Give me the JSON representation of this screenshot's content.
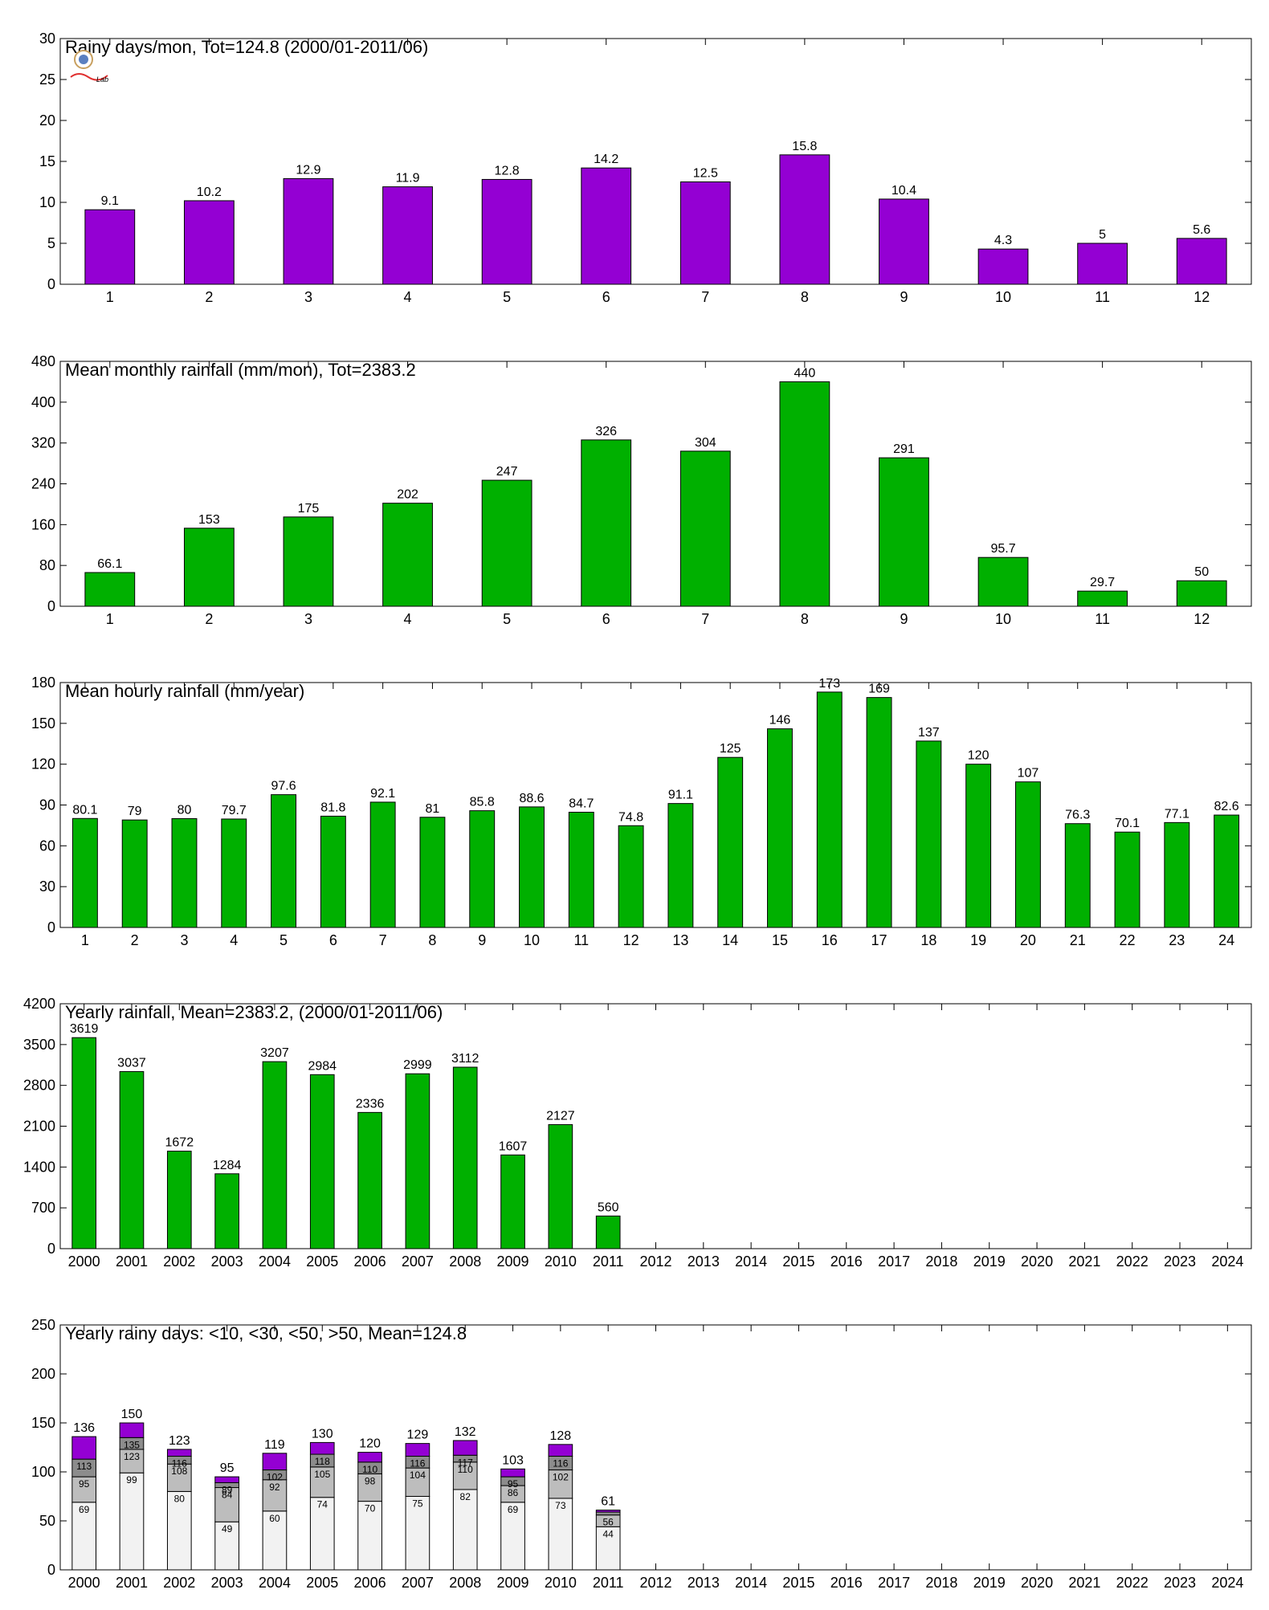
{
  "colors": {
    "purple": "#9400d3",
    "green": "#00b000",
    "white_bin": "#f2f2f2",
    "light_gray_bin": "#bdbdbd",
    "dark_gray_bin": "#8c8c8c",
    "outline": "#000000"
  },
  "logo": {
    "label": "logo",
    "text": "Lab"
  },
  "chart_data": [
    {
      "type": "bar",
      "title": "Rainy days/mon, Tot=124.8 (2000/01-2011/06)",
      "xlabel": "",
      "ylabel": "",
      "categories": [
        "1",
        "2",
        "3",
        "4",
        "5",
        "6",
        "7",
        "8",
        "9",
        "10",
        "11",
        "12"
      ],
      "values": [
        9.1,
        10.2,
        12.9,
        11.9,
        12.8,
        14.2,
        12.5,
        15.8,
        10.4,
        4.3,
        5,
        5.6
      ],
      "labels": [
        "9.1",
        "10.2",
        "12.9",
        "11.9",
        "12.8",
        "14.2",
        "12.5",
        "15.8",
        "10.4",
        "4.3",
        "5",
        "5.6"
      ],
      "ylim": [
        0,
        30
      ],
      "yticks": [
        "0",
        "5",
        "10",
        "15",
        "20",
        "25",
        "30"
      ],
      "color": "#9400d3",
      "grid": false
    },
    {
      "type": "bar",
      "title": "Mean monthly rainfall (mm/mon), Tot=2383.2",
      "xlabel": "",
      "ylabel": "",
      "categories": [
        "1",
        "2",
        "3",
        "4",
        "5",
        "6",
        "7",
        "8",
        "9",
        "10",
        "11",
        "12"
      ],
      "values": [
        66.1,
        153,
        175,
        202,
        247,
        326,
        304,
        440,
        291,
        95.7,
        29.7,
        50
      ],
      "labels": [
        "66.1",
        "153",
        "175",
        "202",
        "247",
        "326",
        "304",
        "440",
        "291",
        "95.7",
        "29.7",
        "50"
      ],
      "ylim": [
        0,
        480
      ],
      "yticks": [
        "0",
        "80",
        "160",
        "240",
        "320",
        "400",
        "480"
      ],
      "color": "#00b000",
      "grid": false
    },
    {
      "type": "bar",
      "title": "Mean hourly rainfall (mm/year)",
      "xlabel": "",
      "ylabel": "",
      "categories": [
        "1",
        "2",
        "3",
        "4",
        "5",
        "6",
        "7",
        "8",
        "9",
        "10",
        "11",
        "12",
        "13",
        "14",
        "15",
        "16",
        "17",
        "18",
        "19",
        "20",
        "21",
        "22",
        "23",
        "24"
      ],
      "values": [
        80.1,
        79,
        80,
        79.7,
        97.6,
        81.8,
        92.1,
        81,
        85.8,
        88.6,
        84.7,
        74.8,
        91.1,
        125,
        146,
        173,
        169,
        137,
        120,
        107,
        76.3,
        70.1,
        77.1,
        82.6
      ],
      "labels": [
        "80.1",
        "79",
        "80",
        "79.7",
        "97.6",
        "81.8",
        "92.1",
        "81",
        "85.8",
        "88.6",
        "84.7",
        "74.8",
        "91.1",
        "125",
        "146",
        "173",
        "169",
        "137",
        "120",
        "107",
        "76.3",
        "70.1",
        "77.1",
        "82.6"
      ],
      "ylim": [
        0,
        180
      ],
      "yticks": [
        "0",
        "30",
        "60",
        "90",
        "120",
        "150",
        "180"
      ],
      "color": "#00b000",
      "grid": false
    },
    {
      "type": "bar",
      "title": "Yearly rainfall, Mean=2383.2, (2000/01-2011/06)",
      "xlabel": "",
      "ylabel": "",
      "categories": [
        "2000",
        "2001",
        "2002",
        "2003",
        "2004",
        "2005",
        "2006",
        "2007",
        "2008",
        "2009",
        "2010",
        "2011",
        "2012",
        "2013",
        "2014",
        "2015",
        "2016",
        "2017",
        "2018",
        "2019",
        "2020",
        "2021",
        "2022",
        "2023",
        "2024"
      ],
      "values": [
        3619,
        3037,
        1672,
        1284,
        3207,
        2984,
        2336,
        2999,
        3112,
        1607,
        2127,
        560,
        null,
        null,
        null,
        null,
        null,
        null,
        null,
        null,
        null,
        null,
        null,
        null,
        null
      ],
      "labels": [
        "3619",
        "3037",
        "1672",
        "1284",
        "3207",
        "2984",
        "2336",
        "2999",
        "3112",
        "1607",
        "2127",
        "560",
        "",
        "",
        "",
        "",
        "",
        "",
        "",
        "",
        "",
        "",
        "",
        "",
        ""
      ],
      "ylim": [
        0,
        4200
      ],
      "yticks": [
        "0",
        "700",
        "1400",
        "2100",
        "2800",
        "3500",
        "4200"
      ],
      "color": "#00b000",
      "grid": false
    },
    {
      "type": "bar",
      "stacked": true,
      "title": "Yearly rainy days: <10, <30, <50, >50, Mean=124.8",
      "xlabel": "",
      "ylabel": "",
      "categories": [
        "2000",
        "2001",
        "2002",
        "2003",
        "2004",
        "2005",
        "2006",
        "2007",
        "2008",
        "2009",
        "2010",
        "2011",
        "2012",
        "2013",
        "2014",
        "2015",
        "2016",
        "2017",
        "2018",
        "2019",
        "2020",
        "2021",
        "2022",
        "2023",
        "2024"
      ],
      "cumulative": [
        [
          69,
          95,
          113,
          136
        ],
        [
          99,
          123,
          135,
          150
        ],
        [
          80,
          108,
          116,
          123
        ],
        [
          49,
          84,
          89,
          95
        ],
        [
          60,
          92,
          102,
          119
        ],
        [
          74,
          105,
          118,
          130
        ],
        [
          70,
          98,
          110,
          120
        ],
        [
          75,
          104,
          116,
          129
        ],
        [
          82,
          110,
          117,
          132
        ],
        [
          69,
          86,
          95,
          103
        ],
        [
          73,
          102,
          116,
          128
        ],
        [
          44,
          56,
          59,
          61
        ],
        null,
        null,
        null,
        null,
        null,
        null,
        null,
        null,
        null,
        null,
        null,
        null,
        null
      ],
      "totals_labels": [
        "136",
        "150",
        "123",
        "95",
        "119",
        "130",
        "120",
        "129",
        "132",
        "103",
        "128",
        "61",
        "",
        "",
        "",
        "",
        "",
        "",
        "",
        "",
        "",
        "",
        "",
        "",
        ""
      ],
      "segment_labels": [
        [
          "69",
          "95",
          "113"
        ],
        [
          "99",
          "123",
          "135"
        ],
        [
          "80",
          "108",
          "116"
        ],
        [
          "49",
          "84",
          "89"
        ],
        [
          "60",
          "92",
          "102"
        ],
        [
          "74",
          "105",
          "118"
        ],
        [
          "70",
          "98",
          "110"
        ],
        [
          "75",
          "104",
          "116"
        ],
        [
          "82",
          "110",
          "117"
        ],
        [
          "69",
          "86",
          "95"
        ],
        [
          "73",
          "102",
          "116"
        ],
        [
          "44",
          "56",
          ""
        ],
        null,
        null,
        null,
        null,
        null,
        null,
        null,
        null,
        null,
        null,
        null,
        null,
        null
      ],
      "ylim": [
        0,
        250
      ],
      "yticks": [
        "0",
        "50",
        "100",
        "150",
        "200",
        "250"
      ],
      "segment_colors": [
        "#f2f2f2",
        "#bdbdbd",
        "#8c8c8c",
        "#9400d3"
      ],
      "grid": false
    }
  ]
}
